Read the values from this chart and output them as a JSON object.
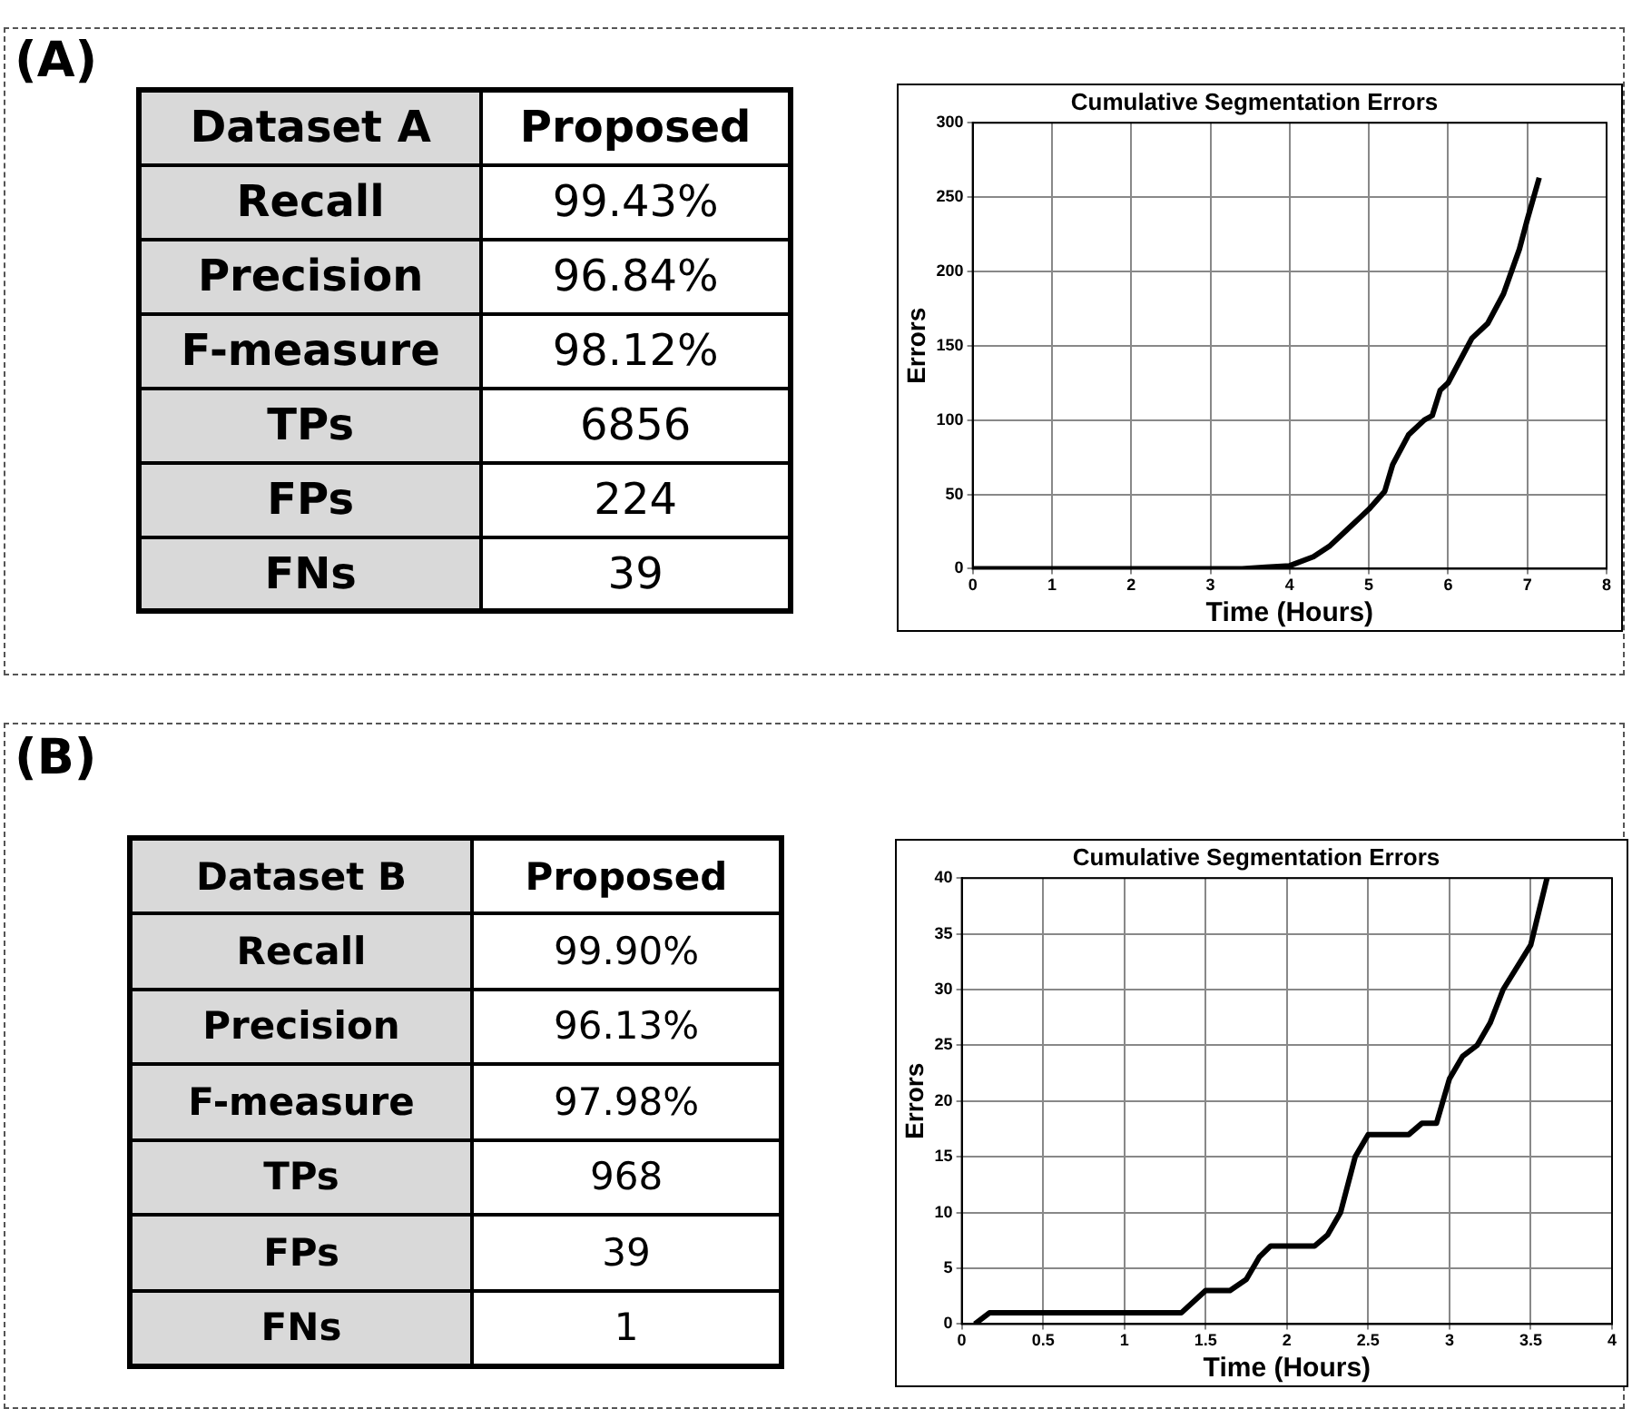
{
  "chart_data": [
    {
      "type": "other",
      "title": "(A)",
      "annotations": [
        "Dataset A",
        "Proposed",
        "Recall",
        "99.43%",
        "Precision",
        "96.84%",
        "F-measure",
        "98.12%",
        "TPs",
        "6856",
        "FPs",
        "224",
        "FNs",
        "39"
      ]
    },
    {
      "type": "line",
      "title": "Cumulative Segmentation Errors",
      "xlabel": "Time (Hours)",
      "ylabel": "Errors",
      "xlim": [
        0,
        8
      ],
      "xticks": [
        0,
        1,
        2,
        3,
        4,
        5,
        6,
        7,
        8
      ],
      "ylim": [
        0,
        300
      ],
      "yticks": [
        0,
        50,
        100,
        150,
        200,
        250,
        300
      ],
      "grid": true,
      "legend": false,
      "series": [
        {
          "color": "#000000",
          "x": [
            0,
            3.4,
            3.7,
            4.0,
            4.3,
            4.5,
            4.7,
            4.9,
            5.0,
            5.2,
            5.3,
            5.5,
            5.7,
            5.8,
            5.9,
            6.0,
            6.2,
            6.3,
            6.5,
            6.7,
            6.9,
            7.0,
            7.15
          ],
          "values": [
            0,
            0,
            1,
            2,
            8,
            15,
            25,
            35,
            40,
            52,
            70,
            90,
            100,
            103,
            120,
            125,
            145,
            155,
            165,
            185,
            215,
            235,
            263
          ]
        }
      ]
    },
    {
      "type": "other",
      "title": "(B)",
      "annotations": [
        "Dataset B",
        "Proposed",
        "Recall",
        "99.90%",
        "Precision",
        "96.13%",
        "F-measure",
        "97.98%",
        "TPs",
        "968",
        "FPs",
        "39",
        "FNs",
        "1"
      ]
    },
    {
      "type": "line",
      "title": "Cumulative Segmentation Errors",
      "xlabel": "Time (Hours)",
      "ylabel": "Errors",
      "xlim": [
        0,
        4
      ],
      "xticks": [
        0,
        0.5,
        1,
        1.5,
        2,
        2.5,
        3,
        3.5,
        4
      ],
      "ylim": [
        0,
        40
      ],
      "yticks": [
        0,
        5,
        10,
        15,
        20,
        25,
        30,
        35,
        40
      ],
      "grid": true,
      "legend": false,
      "series": [
        {
          "color": "#000000",
          "x": [
            0.08,
            0.17,
            1.35,
            1.5,
            1.65,
            1.75,
            1.83,
            1.9,
            2.17,
            2.25,
            2.33,
            2.42,
            2.5,
            2.75,
            2.83,
            2.92,
            3.0,
            3.08,
            3.17,
            3.25,
            3.33,
            3.5,
            3.6
          ],
          "values": [
            0,
            1,
            1,
            3,
            3,
            4,
            6,
            7,
            7,
            8,
            10,
            15,
            17,
            17,
            18,
            18,
            22,
            24,
            25,
            27,
            30,
            34,
            40
          ]
        }
      ]
    }
  ]
}
